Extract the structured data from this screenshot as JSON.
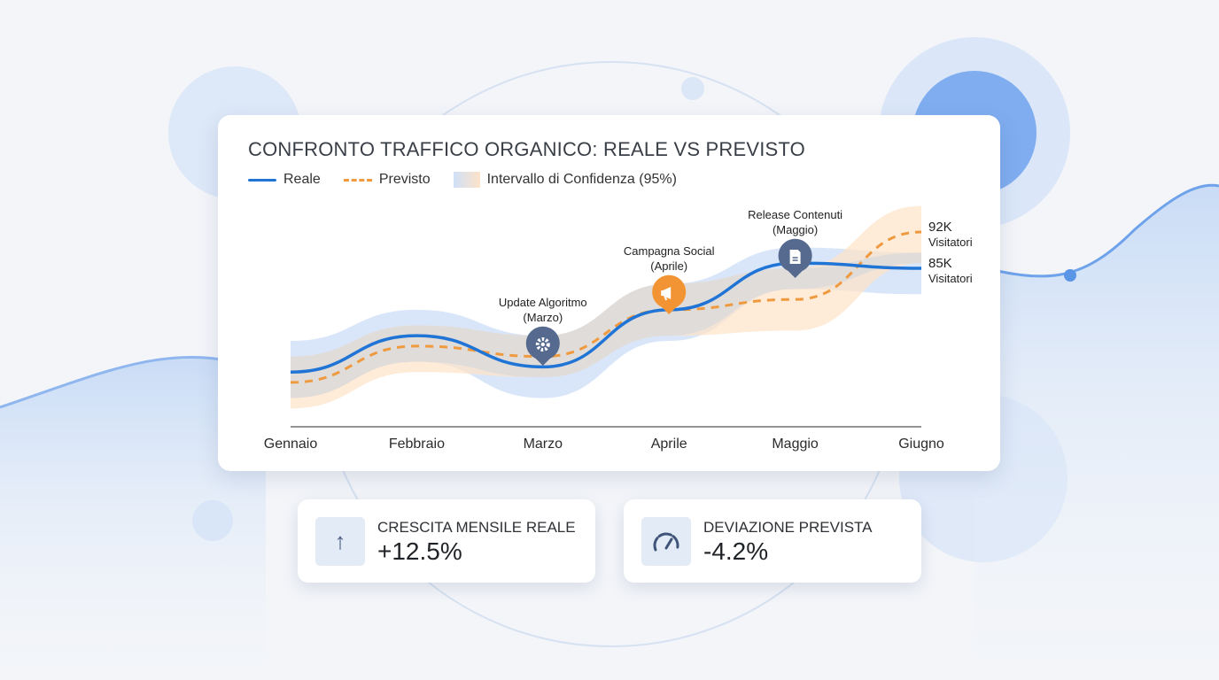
{
  "colors": {
    "reale": "#1f74d6",
    "previsto": "#ef9a3e",
    "band_reale": "#cfe0f8",
    "band_previsto": "#fde3c8",
    "pin_slate": "#56698f",
    "pin_orange": "#f29433"
  },
  "chart_data": {
    "type": "line",
    "title": "CONFRONTO TRAFFICO ORGANICO: REALE VS PREVISTO",
    "categories": [
      "Gennaio",
      "Febbraio",
      "Marzo",
      "Aprile",
      "Maggio",
      "Giugno"
    ],
    "series": [
      {
        "name": "Reale",
        "values": [
          65,
          72,
          66,
          77,
          86,
          85
        ],
        "band_low": [
          60,
          67,
          60,
          71,
          81,
          80
        ],
        "band_high": [
          71,
          77,
          72,
          82,
          89,
          88
        ]
      },
      {
        "name": "Previsto",
        "values": [
          63,
          70,
          68,
          77,
          79,
          92
        ],
        "band_low": [
          58,
          65,
          64,
          72,
          73,
          86
        ],
        "band_high": [
          68,
          74,
          72,
          82,
          85,
          97
        ]
      }
    ],
    "band_label": "Intervallo di Confidenza (95%)",
    "end_labels": [
      {
        "value": "92K",
        "unit": "Visitatori"
      },
      {
        "value": "85K",
        "unit": "Visitatori"
      }
    ],
    "annotations": [
      {
        "category": "Marzo",
        "line1": "Update Algoritmo",
        "line2": "(Marzo)",
        "icon": "gear-icon",
        "color": "slate"
      },
      {
        "category": "Aprile",
        "line1": "Campagna Social",
        "line2": "(Aprile)",
        "icon": "megaphone-icon",
        "color": "orange"
      },
      {
        "category": "Maggio",
        "line1": "Release Contenuti",
        "line2": "(Maggio)",
        "icon": "document-icon",
        "color": "slate"
      }
    ],
    "grid": false,
    "legend": "top-left"
  },
  "stats": [
    {
      "label": "CRESCITA MENSILE REALE",
      "value": "+12.5%",
      "icon": "arrow-up-icon"
    },
    {
      "label": "DEVIAZIONE PREVISTA",
      "value": "-4.2%",
      "icon": "gauge-icon"
    }
  ]
}
